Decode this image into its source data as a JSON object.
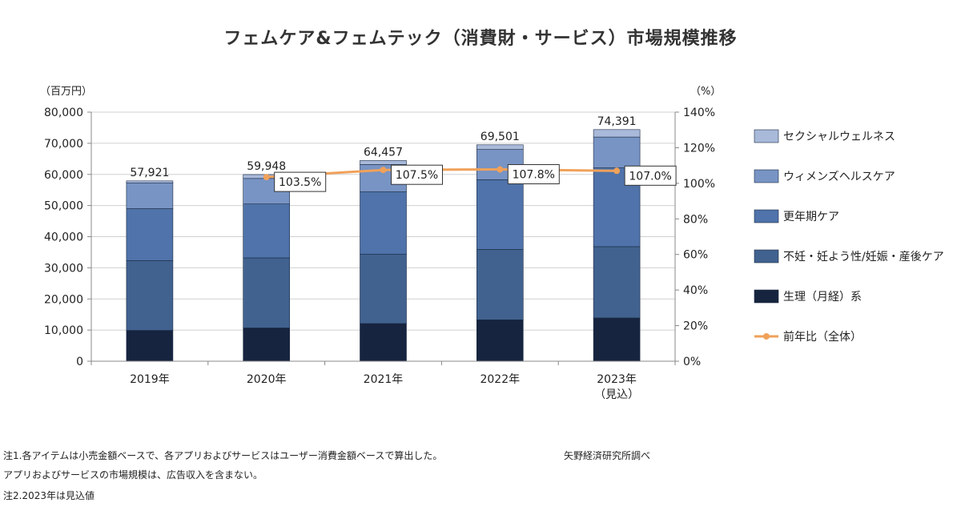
{
  "chart_data": {
    "type": "bar",
    "stacked": true,
    "title": "フェムケア&フェムテック（消費財・サービス）市場規模推移",
    "y_unit_left": "（百万円）",
    "y_unit_right": "（%）",
    "categories": [
      "2019年",
      "2020年",
      "2021年",
      "2022年",
      "2023年\n（見込）"
    ],
    "series": [
      {
        "name": "生理（月経）系",
        "color": "#17243f",
        "values": [
          9900,
          10700,
          12100,
          13300,
          13900
        ]
      },
      {
        "name": "不妊・妊よう性/妊娠・産後ケア",
        "color": "#41628f",
        "values": [
          22400,
          22500,
          22300,
          22600,
          22900
        ]
      },
      {
        "name": "更年期ケア",
        "color": "#4f73aa",
        "values": [
          16700,
          17300,
          20000,
          22400,
          25300
        ]
      },
      {
        "name": "ウィメンズヘルスケア",
        "color": "#7794c4",
        "values": [
          8300,
          8200,
          8800,
          9700,
          9900
        ]
      },
      {
        "name": "セクシャルウェルネス",
        "color": "#a8b9d9",
        "values": [
          621,
          1248,
          1257,
          1501,
          2391
        ]
      }
    ],
    "totals": [
      57921,
      59948,
      64457,
      69501,
      74391
    ],
    "total_labels": [
      "57,921",
      "59,948",
      "64,457",
      "69,501",
      "74,391"
    ],
    "yoy": {
      "name": "前年比（全体）",
      "color": "#f0a15a",
      "values": [
        null,
        103.5,
        107.5,
        107.8,
        107.0
      ],
      "labels": [
        "",
        "103.5%",
        "107.5%",
        "107.8%",
        "107.0%"
      ]
    },
    "ylim": [
      0,
      80000
    ],
    "y_ticks": [
      0,
      10000,
      20000,
      30000,
      40000,
      50000,
      60000,
      70000,
      80000
    ],
    "y_tick_labels": [
      "0",
      "10,000",
      "20,000",
      "30,000",
      "40,000",
      "50,000",
      "60,000",
      "70,000",
      "80,000"
    ],
    "y2lim": [
      0,
      140
    ],
    "y2_ticks": [
      0,
      20,
      40,
      60,
      80,
      100,
      120,
      140
    ],
    "y2_tick_labels": [
      "0%",
      "20%",
      "40%",
      "60%",
      "80%",
      "100%",
      "120%",
      "140%"
    ],
    "legend_order": [
      "セクシャルウェルネス",
      "ウィメンズヘルスケア",
      "更年期ケア",
      "不妊・妊よう性/妊娠・産後ケア",
      "生理（月経）系",
      "前年比（全体）"
    ],
    "legend_position": "right",
    "grid": true
  },
  "notes": {
    "note1_line1": "注1.各アイテムは小売金額ベースで、各アプリおよびサービスはユーザー消費金額ベースで算出した。",
    "note1_line2": "アプリおよびサービスの市場規模は、広告収入を含まない。",
    "note2": "注2.2023年は見込値",
    "source": "矢野経済研究所調べ"
  }
}
